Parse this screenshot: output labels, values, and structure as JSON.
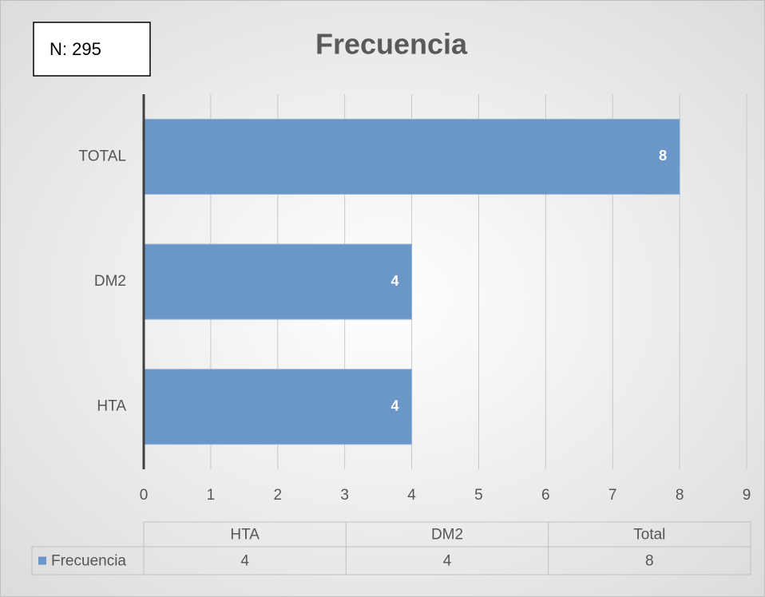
{
  "chart_data": {
    "type": "bar",
    "orientation": "horizontal",
    "title": "Frecuencia",
    "annotation": "N: 295",
    "categories": [
      "HTA",
      "DM2",
      "TOTAL"
    ],
    "values": [
      4,
      4,
      8
    ],
    "color": "#6a96c8",
    "xlim": [
      0,
      9
    ],
    "xticks": [
      0,
      1,
      2,
      3,
      4,
      5,
      6,
      7,
      8,
      9
    ],
    "grid": true,
    "data_table": {
      "columns": [
        "HTA",
        "DM2",
        "Total"
      ],
      "series_name": "Frecuencia"
    }
  }
}
